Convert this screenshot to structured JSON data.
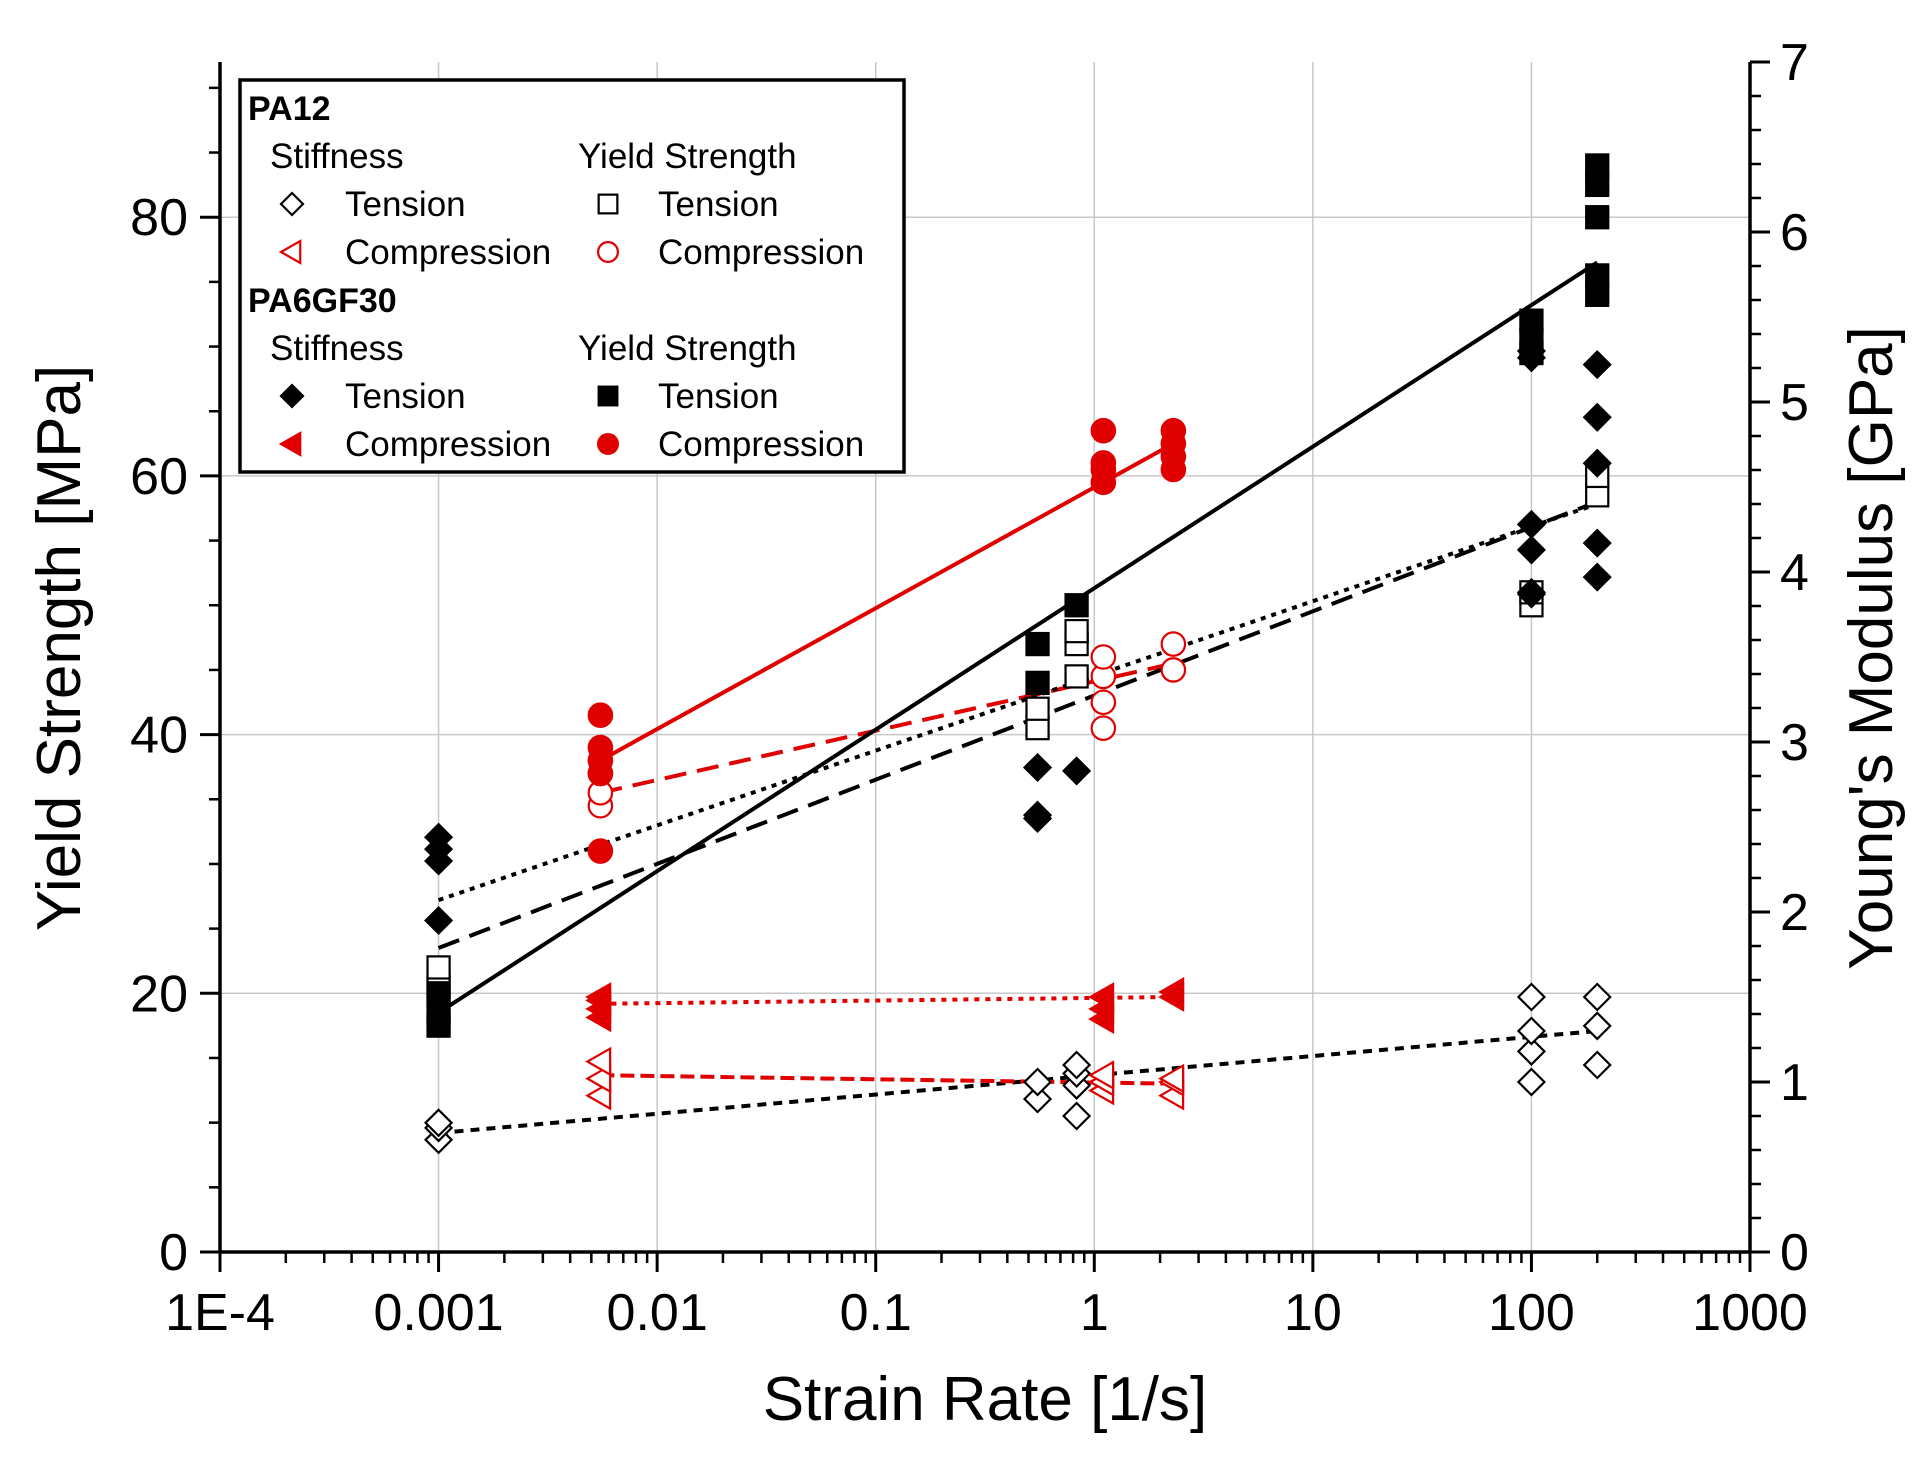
{
  "chart_data": {
    "type": "scatter",
    "title": "",
    "xlabel": "Strain Rate [1/s]",
    "ylabel": "Yield Strength [MPa]",
    "y2label": "Young's Modulus [GPa]",
    "xscale": "log",
    "xlim": [
      0.0001,
      1000
    ],
    "ylim": [
      0,
      92
    ],
    "y2lim": [
      0,
      7
    ],
    "grid": true,
    "x_ticks": [
      {
        "value": 0.0001,
        "label": "1E-4"
      },
      {
        "value": 0.001,
        "label": "0.001"
      },
      {
        "value": 0.01,
        "label": "0.01"
      },
      {
        "value": 0.1,
        "label": "0.1"
      },
      {
        "value": 1,
        "label": "1"
      },
      {
        "value": 10,
        "label": "10"
      },
      {
        "value": 100,
        "label": "100"
      },
      {
        "value": 1000,
        "label": "1000"
      }
    ],
    "y_ticks": [
      {
        "value": 0,
        "label": "0"
      },
      {
        "value": 20,
        "label": "20"
      },
      {
        "value": 40,
        "label": "40"
      },
      {
        "value": 60,
        "label": "60"
      },
      {
        "value": 80,
        "label": "80"
      }
    ],
    "y2_ticks": [
      {
        "value": 0,
        "label": "0"
      },
      {
        "value": 1,
        "label": "1"
      },
      {
        "value": 2,
        "label": "2"
      },
      {
        "value": 3,
        "label": "3"
      },
      {
        "value": 4,
        "label": "4"
      },
      {
        "value": 5,
        "label": "5"
      },
      {
        "value": 6,
        "label": "6"
      },
      {
        "value": 7,
        "label": "7"
      }
    ],
    "legend": {
      "position": "top-left",
      "groups": [
        {
          "name": "PA12",
          "stiffness_header": "Stiffness",
          "strength_header": "Yield Strength",
          "stiffness_items": [
            {
              "marker": "diamond-open",
              "label": "Tension",
              "color": "#000000"
            },
            {
              "marker": "triangle-left-open",
              "label": "Compression",
              "color": "#e00000"
            }
          ],
          "strength_items": [
            {
              "marker": "square-open",
              "label": "Tension",
              "color": "#000000"
            },
            {
              "marker": "circle-open",
              "label": "Compression",
              "color": "#e00000"
            }
          ]
        },
        {
          "name": "PA6GF30",
          "stiffness_header": "Stiffness",
          "strength_header": "Yield Strength",
          "stiffness_items": [
            {
              "marker": "diamond-filled",
              "label": "Tension",
              "color": "#000000"
            },
            {
              "marker": "triangle-left-filled",
              "label": "Compression",
              "color": "#e00000"
            }
          ],
          "strength_items": [
            {
              "marker": "square-filled",
              "label": "Tension",
              "color": "#000000"
            },
            {
              "marker": "circle-filled",
              "label": "Compression",
              "color": "#e00000"
            }
          ]
        }
      ]
    },
    "series": [
      {
        "name": "PA12 Stiffness Tension",
        "axis": "right",
        "marker": "diamond-open",
        "color": "#000000",
        "points": [
          [
            0.001,
            0.66
          ],
          [
            0.001,
            0.73
          ],
          [
            0.001,
            0.76
          ],
          [
            0.55,
            0.9
          ],
          [
            0.55,
            1.0
          ],
          [
            0.83,
            0.8
          ],
          [
            0.83,
            0.98
          ],
          [
            0.83,
            1.05
          ],
          [
            0.83,
            1.1
          ],
          [
            100,
            1.0
          ],
          [
            100,
            1.18
          ],
          [
            100,
            1.3
          ],
          [
            100,
            1.5
          ],
          [
            200,
            1.1
          ],
          [
            200,
            1.33
          ],
          [
            200,
            1.5
          ]
        ]
      },
      {
        "name": "PA12 Stiffness Compression",
        "axis": "right",
        "marker": "triangle-left-open",
        "color": "#e00000",
        "points": [
          [
            0.0055,
            0.92
          ],
          [
            0.0055,
            1.02
          ],
          [
            0.0055,
            1.12
          ],
          [
            1.1,
            0.95
          ],
          [
            1.1,
            1.0
          ],
          [
            1.1,
            1.04
          ],
          [
            2.3,
            0.92
          ],
          [
            2.3,
            1.0
          ],
          [
            2.3,
            1.02
          ]
        ]
      },
      {
        "name": "PA12 Yield Tension",
        "axis": "left",
        "marker": "square-open",
        "color": "#000000",
        "points": [
          [
            0.001,
            20.5
          ],
          [
            0.001,
            22.0
          ],
          [
            0.55,
            40.5
          ],
          [
            0.55,
            42.0
          ],
          [
            0.83,
            44.5
          ],
          [
            0.83,
            47.0
          ],
          [
            0.83,
            48.0
          ],
          [
            100,
            50.0
          ],
          [
            100,
            51.0
          ],
          [
            200,
            58.5
          ],
          [
            200,
            60.0
          ]
        ]
      },
      {
        "name": "PA12 Yield Compression",
        "axis": "left",
        "marker": "circle-open",
        "color": "#e00000",
        "points": [
          [
            0.0055,
            34.5
          ],
          [
            0.0055,
            35.5
          ],
          [
            0.0055,
            37.0
          ],
          [
            1.1,
            40.5
          ],
          [
            1.1,
            42.5
          ],
          [
            1.1,
            44.5
          ],
          [
            1.1,
            46.0
          ],
          [
            2.3,
            45.0
          ],
          [
            2.3,
            47.0
          ]
        ]
      },
      {
        "name": "PA6GF30 Stiffness Tension",
        "axis": "right",
        "marker": "diamond-filled",
        "color": "#000000",
        "points": [
          [
            0.001,
            1.95
          ],
          [
            0.001,
            2.3
          ],
          [
            0.001,
            2.37
          ],
          [
            0.001,
            2.44
          ],
          [
            0.55,
            2.55
          ],
          [
            0.55,
            2.57
          ],
          [
            0.55,
            2.85
          ],
          [
            0.83,
            2.83
          ],
          [
            100,
            3.87
          ],
          [
            100,
            3.88
          ],
          [
            100,
            4.13
          ],
          [
            100,
            4.28
          ],
          [
            100,
            5.26
          ],
          [
            100,
            5.3
          ],
          [
            200,
            3.97
          ],
          [
            200,
            4.17
          ],
          [
            200,
            4.64
          ],
          [
            200,
            4.91
          ],
          [
            200,
            5.22
          ]
        ]
      },
      {
        "name": "PA6GF30 Stiffness Compression",
        "axis": "right",
        "marker": "triangle-left-filled",
        "color": "#e00000",
        "points": [
          [
            0.0055,
            1.38
          ],
          [
            0.0055,
            1.43
          ],
          [
            0.0055,
            1.48
          ],
          [
            0.0055,
            1.5
          ],
          [
            1.1,
            1.37
          ],
          [
            1.1,
            1.43
          ],
          [
            1.1,
            1.5
          ],
          [
            2.3,
            1.5
          ],
          [
            2.3,
            1.53
          ]
        ]
      },
      {
        "name": "PA6GF30 Yield Tension",
        "axis": "left",
        "marker": "square-filled",
        "color": "#000000",
        "points": [
          [
            0.001,
            17.5
          ],
          [
            0.001,
            18.5
          ],
          [
            0.001,
            20.0
          ],
          [
            0.55,
            44.0
          ],
          [
            0.55,
            47.0
          ],
          [
            0.83,
            50.0
          ],
          [
            100,
            69.5
          ],
          [
            100,
            70.5
          ],
          [
            100,
            72.0
          ],
          [
            200,
            74.0
          ],
          [
            200,
            75.5
          ],
          [
            200,
            80.0
          ],
          [
            200,
            82.5
          ],
          [
            200,
            84.0
          ]
        ]
      },
      {
        "name": "PA6GF30 Yield Compression",
        "axis": "left",
        "marker": "circle-filled",
        "color": "#e00000",
        "points": [
          [
            0.0055,
            31.0
          ],
          [
            0.0055,
            37.0
          ],
          [
            0.0055,
            38.0
          ],
          [
            0.0055,
            39.0
          ],
          [
            0.0055,
            41.5
          ],
          [
            1.1,
            59.5
          ],
          [
            1.1,
            60.5
          ],
          [
            1.1,
            61.0
          ],
          [
            1.1,
            63.5
          ],
          [
            2.3,
            60.5
          ],
          [
            2.3,
            61.5
          ],
          [
            2.3,
            62.5
          ],
          [
            2.3,
            63.5
          ]
        ]
      }
    ],
    "fit_lines": [
      {
        "name": "PA12 Stiffness Tension fit",
        "axis": "right",
        "color": "#000000",
        "dash": "short",
        "x": [
          0.001,
          200
        ],
        "y": [
          0.7,
          1.3
        ]
      },
      {
        "name": "PA12 Stiffness Compression fit",
        "axis": "right",
        "color": "#e00000",
        "dash": "dense",
        "x": [
          0.0055,
          2.3
        ],
        "y": [
          1.04,
          0.99
        ]
      },
      {
        "name": "PA12 Yield Tension fit",
        "axis": "left",
        "color": "#000000",
        "dash": "long",
        "x": [
          0.001,
          200
        ],
        "y": [
          23.5,
          58.0
        ]
      },
      {
        "name": "PA12 Yield Compression fit",
        "axis": "left",
        "color": "#e00000",
        "dash": "long",
        "x": [
          0.0055,
          2.3
        ],
        "y": [
          35.5,
          45.5
        ]
      },
      {
        "name": "PA6GF30 Stiffness Tension fit",
        "axis": "right",
        "color": "#000000",
        "dash": "dot",
        "x": [
          0.001,
          200
        ],
        "y": [
          2.07,
          4.4
        ]
      },
      {
        "name": "PA6GF30 Stiffness Compression fit",
        "axis": "right",
        "color": "#e00000",
        "dash": "dot",
        "x": [
          0.0055,
          2.3
        ],
        "y": [
          1.46,
          1.5
        ]
      },
      {
        "name": "PA6GF30 Yield Tension fit",
        "axis": "left",
        "color": "#000000",
        "dash": "solid",
        "x": [
          0.001,
          200
        ],
        "y": [
          18.5,
          76.5
        ]
      },
      {
        "name": "PA6GF30 Yield Compression fit",
        "axis": "left",
        "color": "#e00000",
        "dash": "solid",
        "x": [
          0.0055,
          2.3
        ],
        "y": [
          38.0,
          62.5
        ]
      }
    ]
  }
}
